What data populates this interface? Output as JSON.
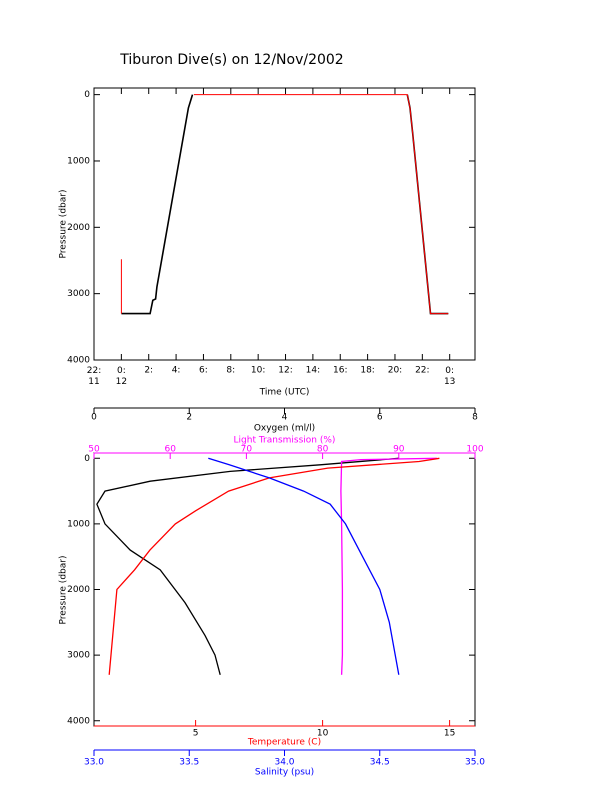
{
  "chart_data": [
    {
      "type": "line",
      "title": "Tiburon Dive(s) on 12/Nov/2002",
      "x_label": "Time (UTC)",
      "y_label": "Pressure (dbar)",
      "xlim": [
        -2,
        25.85
      ],
      "xticks": [
        {
          "value": -2,
          "label": "22:\n11"
        },
        {
          "value": 0,
          "label": "0:\n12"
        },
        {
          "value": 2,
          "label": "2:"
        },
        {
          "value": 4,
          "label": "4:"
        },
        {
          "value": 6,
          "label": "6:"
        },
        {
          "value": 8,
          "label": "8:"
        },
        {
          "value": 10,
          "label": "10:"
        },
        {
          "value": 12,
          "label": "12:"
        },
        {
          "value": 14,
          "label": "14:"
        },
        {
          "value": 16,
          "label": "16:"
        },
        {
          "value": 18,
          "label": "18:"
        },
        {
          "value": 20,
          "label": "20:"
        },
        {
          "value": 22,
          "label": "22:"
        },
        {
          "value": 24,
          "label": "0:\n13"
        }
      ],
      "ylim": [
        4000,
        -100
      ],
      "yticks": [
        0,
        1000,
        2000,
        3000,
        4000
      ],
      "series": [
        {
          "color": "#000000",
          "x": [
            0,
            2.1,
            2.3,
            2.5,
            2.6,
            4.9,
            5.2,
            null,
            20.9,
            21.1,
            21.3,
            22.6,
            23.9
          ],
          "values": [
            3300,
            3300,
            3100,
            3080,
            2900,
            200,
            0,
            null,
            0,
            200,
            600,
            3300,
            3300
          ]
        },
        {
          "color": "#ff0000",
          "x": [
            0,
            0,
            null,
            5.3,
            20.9,
            21.1,
            21.3,
            22.6,
            23.9
          ],
          "values": [
            2480,
            3300,
            null,
            0,
            0,
            200,
            600,
            3300,
            3300
          ]
        }
      ]
    },
    {
      "type": "profile",
      "y_label": "Pressure (dbar)",
      "ylim": [
        4080,
        -80
      ],
      "yticks": [
        0,
        1000,
        2000,
        3000,
        4000
      ],
      "x_axes": [
        {
          "label": "Oxygen (ml/l)",
          "color": "#000000",
          "xlim": [
            0,
            8
          ],
          "xticks": [
            0,
            2,
            4,
            6,
            8
          ],
          "series": [
            {
              "color": "#000000",
              "x": [
                6.4,
                4.75,
                2.86,
                1.18,
                0.23,
                0.06,
                0.23,
                0.76,
                1.39,
                1.91,
                2.33,
                2.54,
                2.65
              ],
              "values": [
                0,
                100,
                200,
                350,
                500,
                700,
                1000,
                1400,
                1700,
                2200,
                2700,
                3000,
                3300
              ]
            }
          ]
        },
        {
          "label": "Light Transmission (%)",
          "color": "#ff00ff",
          "xlim": [
            50,
            100
          ],
          "xticks": [
            50,
            60,
            70,
            80,
            90,
            100
          ],
          "series": [
            {
              "color": "#ff00ff",
              "x": [
                95,
                85,
                82.5,
                82.4,
                82.5,
                82.6,
                82.6,
                82.5
              ],
              "values": [
                0,
                20,
                50,
                500,
                1000,
                2000,
                3000,
                3300
              ]
            }
          ]
        },
        {
          "label": "Temperature (C)",
          "color": "#ff0000",
          "xlim": [
            1,
            16
          ],
          "xticks": [
            5,
            10,
            15
          ],
          "series": [
            {
              "color": "#ff0000",
              "x": [
                14.6,
                13.8,
                10.2,
                7.9,
                6.3,
                5,
                4.2,
                3.2,
                2.6,
                1.9,
                1.6
              ],
              "values": [
                0,
                50,
                150,
                300,
                500,
                800,
                1000,
                1400,
                1700,
                2000,
                3300
              ]
            }
          ]
        },
        {
          "label": "Salinity (psu)",
          "color": "#0000ff",
          "xlim": [
            33,
            35
          ],
          "xticks": [
            {
              "value": 33,
              "label": "33.0"
            },
            {
              "value": 33.5,
              "label": "33.5"
            },
            {
              "value": 34,
              "label": "34.0"
            },
            {
              "value": 34.5,
              "label": "34.5"
            },
            {
              "value": 35,
              "label": "35.0"
            }
          ],
          "series": [
            {
              "color": "#0000ff",
              "x": [
                33.6,
                33.71,
                33.92,
                34.1,
                34.24,
                34.32,
                34.41,
                34.5,
                34.55,
                34.6
              ],
              "values": [
                0,
                100,
                300,
                500,
                700,
                1000,
                1500,
                2000,
                2500,
                3300
              ]
            }
          ]
        }
      ]
    }
  ]
}
